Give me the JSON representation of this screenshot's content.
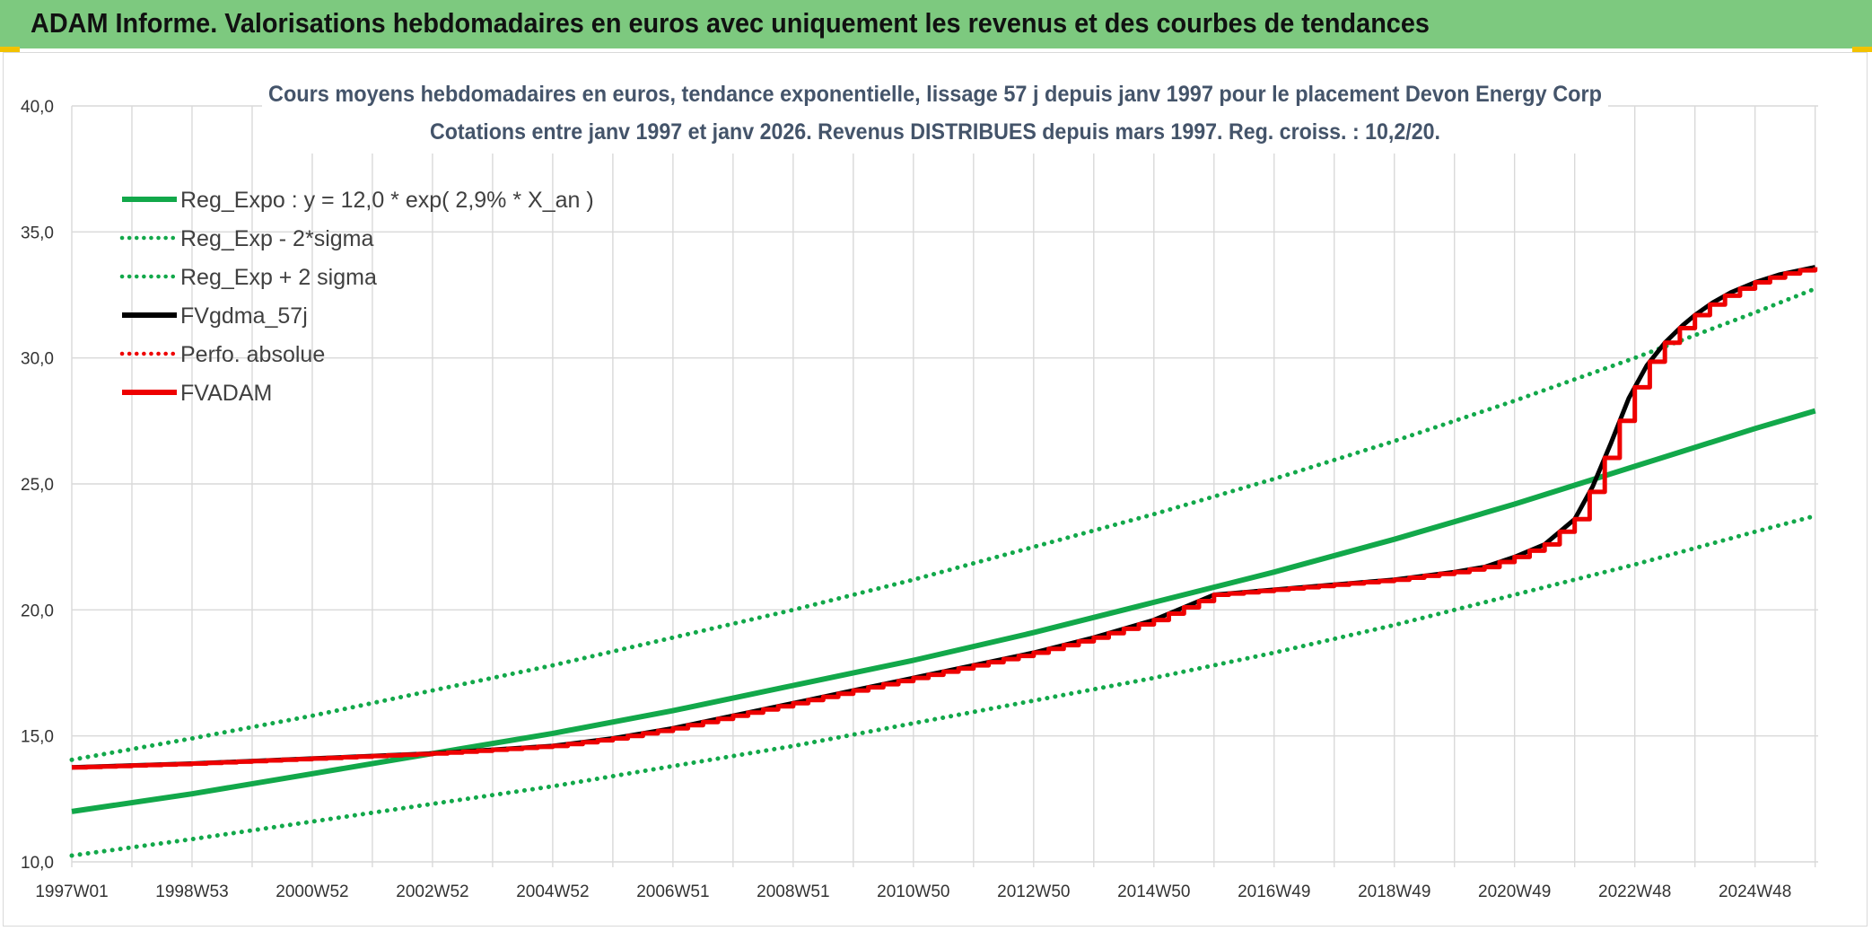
{
  "banner": {
    "title": "ADAM Informe. Valorisations hebdomadaires en euros avec uniquement les revenus et des courbes de tendances"
  },
  "colors": {
    "banner": "#7dc97f",
    "green": "#12a84a",
    "red": "#ee0000",
    "black": "#000000",
    "grid": "#d9d9d9"
  },
  "chart_data": {
    "type": "line",
    "title": "Cours moyens hebdomadaires en euros, tendance exponentielle, lissage 57 j depuis janv 1997 pour le placement Devon Energy Corp",
    "subtitle": "Cotations entre janv 1997 et janv 2026. Revenus DISTRIBUES depuis mars 1997. Reg. croiss. : 10,2/20.",
    "xlabel": "",
    "ylabel": "",
    "ylim": [
      10,
      40
    ],
    "y_ticks": [
      "10,0",
      "15,0",
      "20,0",
      "25,0",
      "30,0",
      "35,0",
      "40,0"
    ],
    "x_range": [
      1997.0,
      2026.05
    ],
    "x_ticks": [
      {
        "label": "1997W01",
        "x": 1997.0
      },
      {
        "label": "1998W53",
        "x": 1999.0
      },
      {
        "label": "2000W52",
        "x": 2001.0
      },
      {
        "label": "2002W52",
        "x": 2003.0
      },
      {
        "label": "2004W52",
        "x": 2005.0
      },
      {
        "label": "2006W51",
        "x": 2007.0
      },
      {
        "label": "2008W51",
        "x": 2009.0
      },
      {
        "label": "2010W50",
        "x": 2011.0
      },
      {
        "label": "2012W50",
        "x": 2013.0
      },
      {
        "label": "2014W50",
        "x": 2015.0
      },
      {
        "label": "2016W49",
        "x": 2017.0
      },
      {
        "label": "2018W49",
        "x": 2019.0
      },
      {
        "label": "2020W49",
        "x": 2021.0
      },
      {
        "label": "2022W48",
        "x": 2023.0
      },
      {
        "label": "2024W48",
        "x": 2025.0
      }
    ],
    "grid": true,
    "legend_position": "top-left",
    "series": [
      {
        "name": "Reg_Expo : y = 12,0 * exp( 2,9% *  X_an )",
        "style": "solid",
        "color": "#12a84a",
        "x": [
          1997,
          1999,
          2001,
          2003,
          2005,
          2007,
          2009,
          2011,
          2013,
          2015,
          2017,
          2019,
          2021,
          2023,
          2025,
          2026
        ],
        "y": [
          12.0,
          12.7,
          13.5,
          14.3,
          15.1,
          16.0,
          17.0,
          18.0,
          19.1,
          20.3,
          21.5,
          22.8,
          24.2,
          25.7,
          27.2,
          27.9
        ]
      },
      {
        "name": "Reg_Exp - 2*sigma",
        "style": "dotted",
        "color": "#12a84a",
        "x": [
          1997,
          1999,
          2001,
          2003,
          2005,
          2007,
          2009,
          2011,
          2013,
          2015,
          2017,
          2019,
          2021,
          2023,
          2025,
          2025.95
        ],
        "y": [
          10.25,
          10.9,
          11.6,
          12.3,
          13.0,
          13.8,
          14.6,
          15.5,
          16.4,
          17.3,
          18.3,
          19.4,
          20.6,
          21.8,
          23.1,
          23.7
        ]
      },
      {
        "name": "Reg_Exp + 2 sigma",
        "style": "dotted",
        "color": "#12a84a",
        "x": [
          1997,
          1999,
          2001,
          2003,
          2005,
          2007,
          2009,
          2011,
          2013,
          2015,
          2017,
          2019,
          2021,
          2023,
          2025,
          2025.95
        ],
        "y": [
          14.05,
          14.9,
          15.8,
          16.8,
          17.8,
          18.9,
          20.0,
          21.2,
          22.5,
          23.8,
          25.2,
          26.7,
          28.3,
          30.0,
          31.8,
          32.7
        ]
      },
      {
        "name": "FVgdma_57j",
        "style": "solid",
        "color": "#000000",
        "x": [
          1997,
          1999,
          2001,
          2003,
          2005,
          2006,
          2007,
          2008,
          2009,
          2010,
          2011,
          2012,
          2013,
          2014,
          2015,
          2016,
          2017,
          2018,
          2019,
          2020,
          2020.5,
          2021,
          2021.5,
          2022,
          2022.3,
          2022.6,
          2022.9,
          2023.2,
          2023.5,
          2023.8,
          2024,
          2024.3,
          2024.6,
          2025,
          2025.4,
          2026
        ],
        "y": [
          13.75,
          13.9,
          14.1,
          14.3,
          14.6,
          14.9,
          15.3,
          15.8,
          16.3,
          16.8,
          17.3,
          17.8,
          18.3,
          18.9,
          19.6,
          20.6,
          20.8,
          21.0,
          21.2,
          21.5,
          21.7,
          22.1,
          22.6,
          23.6,
          24.9,
          26.6,
          28.4,
          29.7,
          30.6,
          31.3,
          31.7,
          32.2,
          32.6,
          33.0,
          33.3,
          33.6
        ]
      },
      {
        "name": "Perfo. absolue",
        "style": "dotted",
        "color": "#ee0000",
        "x": [],
        "y": []
      },
      {
        "name": "FVADAM",
        "style": "solid",
        "color": "#ee0000",
        "x": [
          1997,
          1999,
          2001,
          2003,
          2005,
          2006,
          2007,
          2008,
          2009,
          2010,
          2011,
          2012,
          2013,
          2014,
          2015,
          2016,
          2017,
          2018,
          2019,
          2020,
          2020.5,
          2021,
          2021.5,
          2022,
          2022.3,
          2022.6,
          2022.9,
          2023.2,
          2023.5,
          2023.8,
          2024,
          2024.3,
          2024.6,
          2025,
          2025.4,
          2026
        ],
        "y": [
          13.75,
          13.9,
          14.1,
          14.3,
          14.6,
          14.9,
          15.3,
          15.8,
          16.3,
          16.8,
          17.3,
          17.8,
          18.3,
          18.9,
          19.6,
          20.6,
          20.8,
          21.0,
          21.2,
          21.5,
          21.7,
          22.1,
          22.6,
          23.6,
          24.9,
          26.6,
          28.4,
          29.7,
          30.6,
          31.3,
          31.7,
          32.2,
          32.6,
          33.0,
          33.3,
          33.6
        ]
      }
    ]
  }
}
